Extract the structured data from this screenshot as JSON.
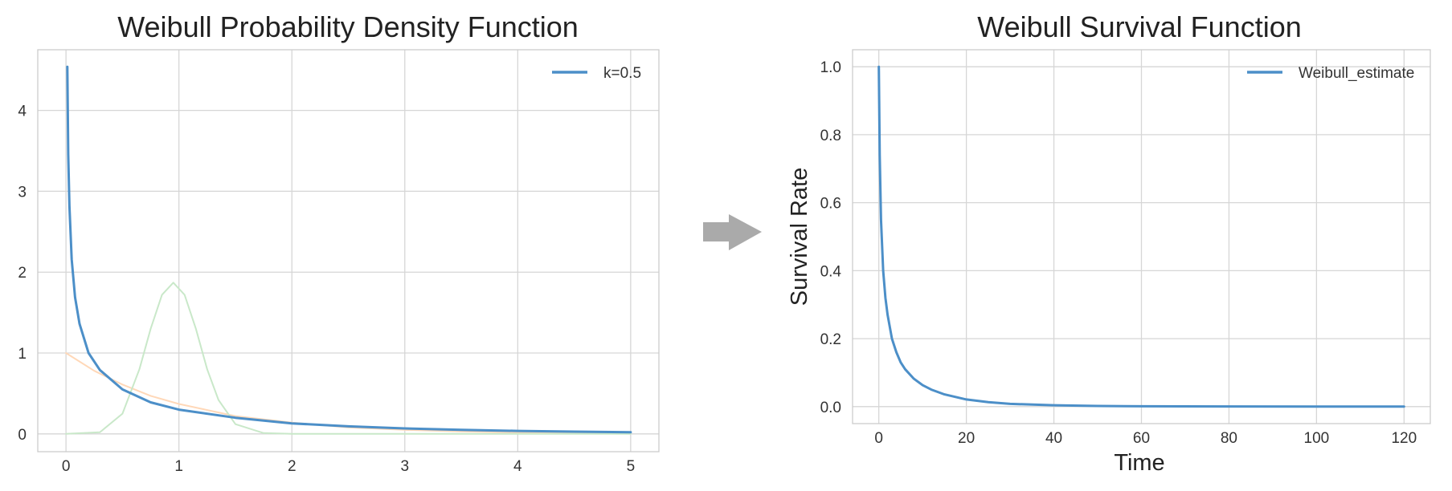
{
  "chart_data": [
    {
      "type": "line",
      "title": "Weibull Probability Density Function",
      "xlabel": "",
      "ylabel": "",
      "xlim": [
        -0.25,
        5.25
      ],
      "ylim": [
        -0.22,
        4.75
      ],
      "xticks": [
        0,
        1,
        2,
        3,
        4,
        5
      ],
      "yticks": [
        0,
        1,
        2,
        3,
        4
      ],
      "grid": true,
      "legend": {
        "placement": "top-right",
        "entries": [
          "k=0.5"
        ]
      },
      "series": [
        {
          "name": "k=0.5",
          "color": "#4c8fc8",
          "emphasis": "primary",
          "x": [
            0.012,
            0.02,
            0.03,
            0.05,
            0.08,
            0.12,
            0.2,
            0.3,
            0.5,
            0.75,
            1,
            1.5,
            2,
            2.5,
            3,
            3.5,
            4,
            4.5,
            5
          ],
          "y": [
            4.54,
            3.46,
            2.82,
            2.16,
            1.69,
            1.36,
            1.0,
            0.79,
            0.55,
            0.39,
            0.3,
            0.2,
            0.13,
            0.093,
            0.068,
            0.05,
            0.037,
            0.028,
            0.021
          ]
        },
        {
          "color": "#ffd8b8",
          "emphasis": "faint",
          "x": [
            0,
            0.25,
            0.5,
            0.75,
            1,
            1.5,
            2,
            2.5,
            3,
            3.5,
            4,
            5
          ],
          "y": [
            1.0,
            0.78,
            0.61,
            0.47,
            0.37,
            0.22,
            0.14,
            0.08,
            0.05,
            0.03,
            0.018,
            0.007
          ]
        },
        {
          "color": "#c9e8c9",
          "emphasis": "faint",
          "x": [
            0,
            0.3,
            0.5,
            0.65,
            0.75,
            0.85,
            0.95,
            1.05,
            1.15,
            1.25,
            1.35,
            1.5,
            1.75,
            2,
            5
          ],
          "y": [
            0,
            0.02,
            0.25,
            0.8,
            1.3,
            1.72,
            1.87,
            1.72,
            1.3,
            0.8,
            0.42,
            0.12,
            0.01,
            0.0,
            0.0
          ]
        }
      ]
    },
    {
      "type": "line",
      "title": "Weibull Survival Function",
      "xlabel": "Time",
      "ylabel": "Survival Rate",
      "xlim": [
        -6,
        126
      ],
      "ylim": [
        -0.05,
        1.05
      ],
      "xticks": [
        0,
        20,
        40,
        60,
        80,
        100,
        120
      ],
      "yticks": [
        0.0,
        0.2,
        0.4,
        0.6,
        0.8,
        1.0
      ],
      "grid": true,
      "legend": {
        "placement": "top-right",
        "entries": [
          "Weibull_estimate"
        ]
      },
      "series": [
        {
          "name": "Weibull_estimate",
          "color": "#4c8fc8",
          "x": [
            0,
            0.2,
            0.5,
            1,
            1.5,
            2,
            3,
            4,
            5,
            6,
            8,
            10,
            12,
            15,
            20,
            25,
            30,
            40,
            50,
            60,
            80,
            100,
            120
          ],
          "y": [
            1.0,
            0.74,
            0.55,
            0.4,
            0.32,
            0.27,
            0.2,
            0.16,
            0.13,
            0.11,
            0.082,
            0.063,
            0.05,
            0.036,
            0.021,
            0.013,
            0.008,
            0.004,
            0.002,
            0.001,
            0.0005,
            0.0002,
            0.0001
          ]
        }
      ]
    }
  ],
  "arrow": {
    "icon": "right-arrow-icon",
    "color": "#aaaaaa"
  }
}
